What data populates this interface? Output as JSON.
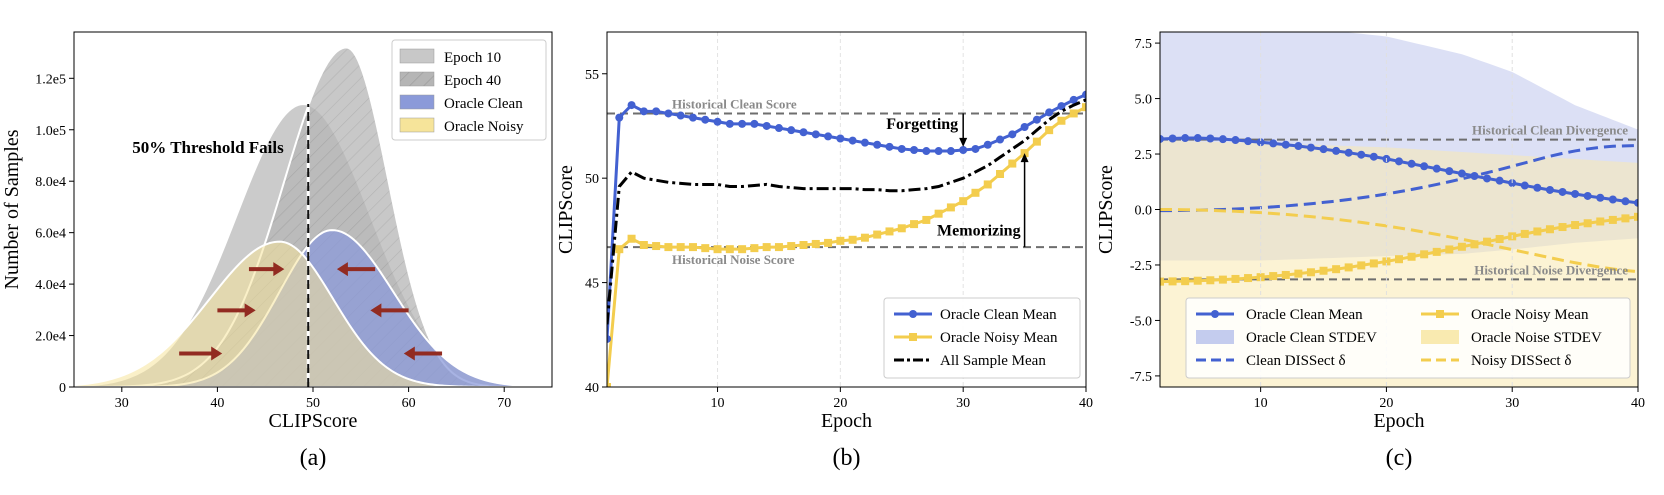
{
  "colors": {
    "clean": "#4361d1",
    "noisy": "#f3cd4e",
    "epoch10": "#c8c8c8",
    "epoch40": "#b5b5b5",
    "clean_fill": "#8b9ad9",
    "noisy_fill": "#f6e49a",
    "arrow": "#922b21",
    "dashed_ref": "#6e6e6e"
  },
  "chart_data": [
    {
      "panel": "(a)",
      "type": "area",
      "xlabel": "CLIPScore",
      "ylabel": "Number of Samples",
      "xlim": [
        25,
        75
      ],
      "ylim": [
        0,
        138000
      ],
      "xticks": [
        30,
        40,
        50,
        60,
        70
      ],
      "yticks": [
        0,
        20000,
        40000,
        60000,
        80000,
        100000,
        120000
      ],
      "ytick_labels": [
        "0",
        "2.0e4",
        "4.0e4",
        "6.0e4",
        "8.0e4",
        "1.0e5",
        "1.2e5"
      ],
      "legend": [
        "Epoch 10",
        "Epoch 40",
        "Oracle Clean",
        "Oracle Noisy"
      ],
      "legend_position": "upper right",
      "series": [
        {
          "name": "Epoch 10",
          "distribution": "gaussian",
          "mean": 49.0,
          "peak": 110000,
          "sd_left": 7.0,
          "sd_right": 7.0
        },
        {
          "name": "Epoch 40",
          "distribution": "gaussian",
          "mean": 53.5,
          "peak": 132000,
          "sd_left": 6.5,
          "sd_right": 4.4
        },
        {
          "name": "Oracle Clean",
          "distribution": "gaussian",
          "mean": 52.0,
          "peak": 61000,
          "sd_left": 5.5,
          "sd_right": 6.4
        },
        {
          "name": "Oracle Noisy",
          "distribution": "gaussian",
          "mean": 46.5,
          "peak": 56500,
          "sd_left": 7.3,
          "sd_right": 5.6
        }
      ],
      "threshold_x": 49.5,
      "annotation": "50% Threshold Fails",
      "arrows": [
        {
          "x1": 36.0,
          "x2": 40.5,
          "y": 13000
        },
        {
          "x1": 40.0,
          "x2": 44.0,
          "y": 29800
        },
        {
          "x1": 43.3,
          "x2": 47.0,
          "y": 45800
        },
        {
          "x1": 56.5,
          "x2": 52.5,
          "y": 45800
        },
        {
          "x1": 60.0,
          "x2": 56.0,
          "y": 29800
        },
        {
          "x1": 63.5,
          "x2": 59.5,
          "y": 13000
        }
      ],
      "caption": "(a)"
    },
    {
      "panel": "(b)",
      "type": "line",
      "xlabel": "Epoch",
      "ylabel": "CLIPScore",
      "xlim": [
        1,
        40
      ],
      "ylim": [
        40,
        57
      ],
      "xticks": [
        10,
        20,
        30,
        40
      ],
      "yticks": [
        40,
        45,
        50,
        55
      ],
      "x": [
        1,
        2,
        3,
        4,
        5,
        6,
        7,
        8,
        9,
        10,
        11,
        12,
        13,
        14,
        15,
        16,
        17,
        18,
        19,
        20,
        21,
        22,
        23,
        24,
        25,
        26,
        27,
        28,
        29,
        30,
        31,
        32,
        33,
        34,
        35,
        36,
        37,
        38,
        39,
        40
      ],
      "series": [
        {
          "name": "Oracle Clean Mean",
          "values": [
            42.3,
            52.9,
            53.5,
            53.2,
            53.2,
            53.1,
            53.0,
            52.9,
            52.8,
            52.7,
            52.6,
            52.6,
            52.6,
            52.5,
            52.4,
            52.3,
            52.2,
            52.1,
            52.0,
            51.9,
            51.8,
            51.7,
            51.6,
            51.5,
            51.4,
            51.35,
            51.3,
            51.3,
            51.3,
            51.35,
            51.4,
            51.6,
            51.85,
            52.1,
            52.45,
            52.8,
            53.15,
            53.45,
            53.75,
            54.0
          ]
        },
        {
          "name": "Oracle Noisy Mean",
          "values": [
            40.0,
            46.6,
            47.1,
            46.8,
            46.75,
            46.7,
            46.7,
            46.7,
            46.65,
            46.6,
            46.6,
            46.6,
            46.65,
            46.7,
            46.7,
            46.75,
            46.8,
            46.85,
            46.9,
            47.0,
            47.05,
            47.15,
            47.3,
            47.45,
            47.6,
            47.8,
            48.0,
            48.3,
            48.6,
            48.9,
            49.3,
            49.7,
            50.2,
            50.7,
            51.2,
            51.75,
            52.3,
            52.75,
            53.1,
            53.4
          ]
        },
        {
          "name": "All Sample Mean",
          "values": [
            43.0,
            49.6,
            50.3,
            50.0,
            49.9,
            49.8,
            49.75,
            49.7,
            49.7,
            49.7,
            49.6,
            49.6,
            49.65,
            49.7,
            49.6,
            49.55,
            49.5,
            49.5,
            49.5,
            49.5,
            49.5,
            49.45,
            49.45,
            49.4,
            49.4,
            49.45,
            49.5,
            49.6,
            49.8,
            50.0,
            50.3,
            50.6,
            51.0,
            51.4,
            51.8,
            52.3,
            52.8,
            53.2,
            53.5,
            53.75
          ]
        }
      ],
      "reference_lines": [
        {
          "label": "Historical Clean Score",
          "y": 53.1
        },
        {
          "label": "Historical Noise Score",
          "y": 46.7
        }
      ],
      "annotations": [
        {
          "text": "Forgetting",
          "x": 30,
          "y_from": 53.1,
          "y_to": 51.5
        },
        {
          "text": "Memorizing",
          "x": 35,
          "y_from": 46.7,
          "y_to": 51.2
        }
      ],
      "legend": [
        "Oracle Clean Mean",
        "Oracle Noisy Mean",
        "All Sample Mean"
      ],
      "legend_position": "lower right",
      "grid": "vertical",
      "caption": "(b)"
    },
    {
      "panel": "(c)",
      "type": "line",
      "xlabel": "Epoch",
      "ylabel": "CLIPScore",
      "xlim": [
        2,
        40
      ],
      "ylim": [
        -8,
        8
      ],
      "xticks": [
        10,
        20,
        30,
        40
      ],
      "yticks": [
        -7.5,
        -5.0,
        -2.5,
        0.0,
        2.5,
        5.0,
        7.5
      ],
      "x": [
        2,
        3,
        4,
        5,
        6,
        7,
        8,
        9,
        10,
        11,
        12,
        13,
        14,
        15,
        16,
        17,
        18,
        19,
        20,
        21,
        22,
        23,
        24,
        25,
        26,
        27,
        28,
        29,
        30,
        31,
        32,
        33,
        34,
        35,
        36,
        37,
        38,
        39,
        40
      ],
      "series": [
        {
          "name": "Oracle Clean Mean",
          "values": [
            3.18,
            3.2,
            3.22,
            3.22,
            3.2,
            3.17,
            3.13,
            3.08,
            3.03,
            2.98,
            2.92,
            2.86,
            2.79,
            2.72,
            2.64,
            2.56,
            2.47,
            2.38,
            2.28,
            2.17,
            2.06,
            1.95,
            1.84,
            1.73,
            1.62,
            1.51,
            1.4,
            1.3,
            1.19,
            1.08,
            0.98,
            0.88,
            0.79,
            0.7,
            0.61,
            0.53,
            0.45,
            0.37,
            0.3
          ]
        },
        {
          "name": "Oracle Noisy Mean",
          "values": [
            -3.25,
            -3.24,
            -3.23,
            -3.21,
            -3.19,
            -3.16,
            -3.13,
            -3.09,
            -3.05,
            -3.0,
            -2.95,
            -2.89,
            -2.83,
            -2.76,
            -2.69,
            -2.61,
            -2.52,
            -2.43,
            -2.34,
            -2.24,
            -2.13,
            -2.02,
            -1.91,
            -1.8,
            -1.68,
            -1.57,
            -1.45,
            -1.33,
            -1.21,
            -1.1,
            -0.99,
            -0.89,
            -0.79,
            -0.7,
            -0.62,
            -0.54,
            -0.47,
            -0.4,
            -0.33
          ]
        },
        {
          "name": "Clean DISSect δ",
          "values": [
            -0.05,
            -0.05,
            -0.04,
            -0.03,
            -0.02,
            0.0,
            0.02,
            0.05,
            0.08,
            0.12,
            0.16,
            0.21,
            0.26,
            0.32,
            0.38,
            0.45,
            0.53,
            0.61,
            0.7,
            0.8,
            0.9,
            1.01,
            1.13,
            1.25,
            1.38,
            1.52,
            1.66,
            1.8,
            1.95,
            2.1,
            2.25,
            2.4,
            2.53,
            2.64,
            2.73,
            2.8,
            2.85,
            2.87,
            2.88
          ]
        },
        {
          "name": "Noisy DISSect δ",
          "values": [
            0.0,
            0.0,
            -0.01,
            -0.02,
            -0.04,
            -0.06,
            -0.08,
            -0.11,
            -0.14,
            -0.18,
            -0.22,
            -0.27,
            -0.32,
            -0.38,
            -0.44,
            -0.51,
            -0.58,
            -0.66,
            -0.74,
            -0.83,
            -0.92,
            -1.02,
            -1.12,
            -1.23,
            -1.34,
            -1.45,
            -1.57,
            -1.69,
            -1.81,
            -1.93,
            -2.05,
            -2.17,
            -2.29,
            -2.4,
            -2.5,
            -2.6,
            -2.68,
            -2.75,
            -2.8
          ]
        }
      ],
      "bands": [
        {
          "name": "Oracle Clean STDEV",
          "x": [
            2,
            10,
            20,
            26,
            30,
            35,
            40
          ],
          "upper": [
            8.6,
            8.4,
            7.8,
            7.0,
            6.2,
            4.7,
            3.6
          ],
          "lower": [
            -2.3,
            -2.3,
            -2.1,
            -2.0,
            -1.8,
            -1.5,
            -1.3
          ]
        },
        {
          "name": "Oracle Noise STDEV",
          "x": [
            2,
            10,
            20,
            30,
            40
          ],
          "upper": [
            3.1,
            3.0,
            2.8,
            2.45,
            2.1
          ],
          "lower": [
            -8.6,
            -8.6,
            -8.4,
            -8.2,
            -8.0
          ]
        }
      ],
      "reference_lines": [
        {
          "label": "Historical Clean Divergence",
          "y": 3.15
        },
        {
          "label": "Historical Noise Divergence",
          "y": -3.15
        }
      ],
      "legend": [
        "Oracle Clean Mean",
        "Oracle Noisy Mean",
        "Oracle Clean STDEV",
        "Oracle Noise STDEV",
        "Clean DISSect δ",
        "Noisy DISSect δ"
      ],
      "legend_position": "lower center",
      "grid": "vertical",
      "caption": "(c)"
    }
  ]
}
